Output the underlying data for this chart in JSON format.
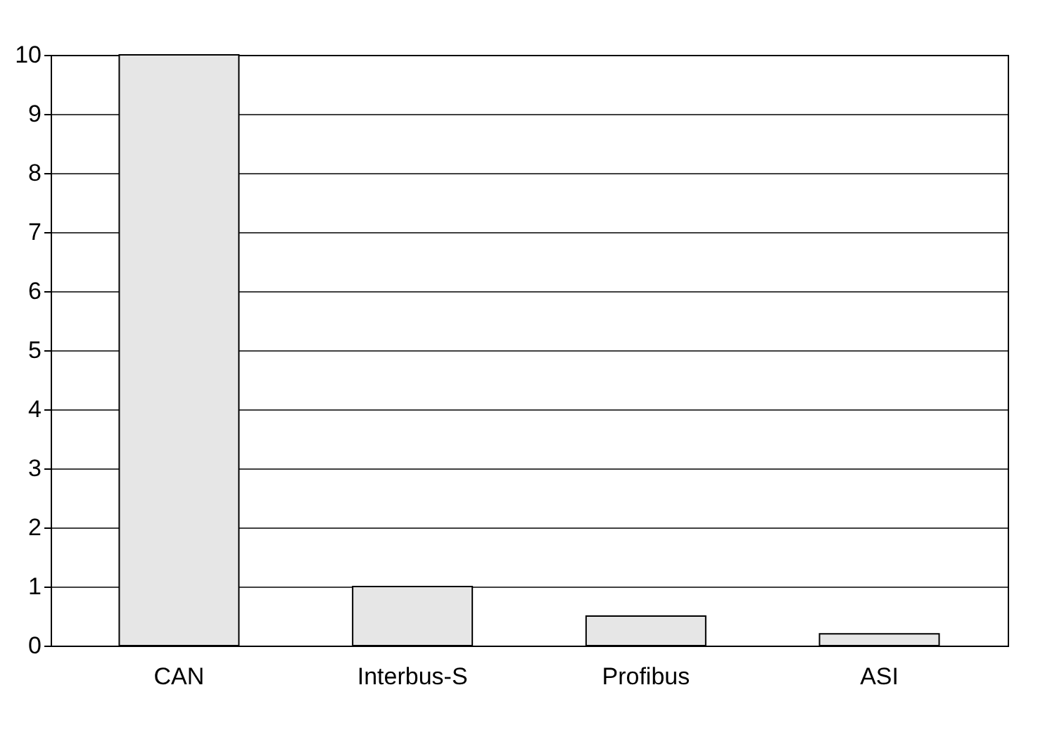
{
  "chart_data": {
    "type": "bar",
    "categories": [
      "CAN",
      "Interbus-S",
      "Profibus",
      "ASI"
    ],
    "values": [
      10,
      1,
      0.5,
      0.2
    ],
    "color": "#e6e6e6",
    "ylim": [
      0,
      10
    ],
    "yticks": [
      0,
      1,
      2,
      3,
      4,
      5,
      6,
      7,
      8,
      9,
      10
    ],
    "grid": "y"
  }
}
